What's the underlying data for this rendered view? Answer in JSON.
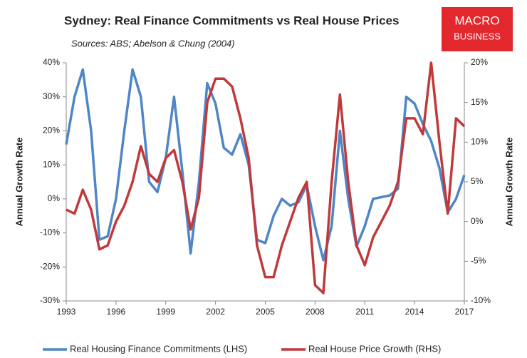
{
  "chart_data": {
    "type": "line",
    "title": "Sydney: Real Finance Commitments vs Real House Prices",
    "subtitle": "Sources: ABS; Abelson & Chung (2004)",
    "logo": [
      "MACRO",
      "BUSINESS"
    ],
    "ylabel": "Annual Growth Rate",
    "y2label": "Annual Growth Rate",
    "x": [
      1993,
      1993.5,
      1994,
      1994.5,
      1995,
      1995.5,
      1996,
      1996.5,
      1997,
      1997.5,
      1998,
      1998.5,
      1999,
      1999.5,
      2000,
      2000.5,
      2001,
      2001.5,
      2002,
      2002.5,
      2003,
      2003.5,
      2004,
      2004.5,
      2005,
      2005.5,
      2006,
      2006.5,
      2007,
      2007.5,
      2008,
      2008.5,
      2009,
      2009.5,
      2010,
      2010.5,
      2011,
      2011.5,
      2012,
      2012.5,
      2013,
      2013.5,
      2014,
      2014.5,
      2015,
      2015.5,
      2016,
      2016.5,
      2017
    ],
    "series": [
      {
        "name": "Real Housing Finance Commitments (LHS)",
        "color": "#4f86c6",
        "axis": "y",
        "values": [
          16,
          30,
          38,
          20,
          -12,
          -11,
          0,
          20,
          38,
          30,
          5,
          2,
          12,
          30,
          8,
          -16,
          5,
          34,
          28,
          15,
          13,
          19,
          10,
          -12,
          -13,
          -5,
          0,
          -2,
          -1,
          4,
          -8,
          -18,
          -8,
          20,
          0,
          -14,
          -8,
          0,
          0.5,
          1,
          3,
          30,
          28,
          22,
          17,
          9,
          -4,
          0,
          7
        ]
      },
      {
        "name": "Real House Price Growth (RHS)",
        "color": "#c0393b",
        "axis": "y2",
        "values": [
          1.5,
          1,
          4,
          1.5,
          -3.5,
          -3,
          0,
          2,
          5,
          9.5,
          6,
          5,
          8,
          9,
          5,
          -1,
          3,
          15,
          18,
          18,
          17,
          13,
          8,
          -3,
          -7,
          -7,
          -3,
          0,
          3,
          5,
          -8,
          -9,
          5,
          16,
          5,
          -3,
          -5.5,
          -2,
          0,
          2,
          5,
          13,
          13,
          11,
          20,
          10,
          1,
          13,
          12
        ]
      }
    ],
    "xlim": [
      1993,
      2017
    ],
    "xticks": [
      1993,
      1996,
      1999,
      2002,
      2005,
      2008,
      2011,
      2014,
      2017
    ],
    "ylim": [
      -30,
      40
    ],
    "yticks": [
      {
        "value": -30,
        "label": "-30%"
      },
      {
        "value": -20,
        "label": "-20%"
      },
      {
        "value": -10,
        "label": "-10%"
      },
      {
        "value": 0,
        "label": "0%"
      },
      {
        "value": 10,
        "label": "10%"
      },
      {
        "value": 20,
        "label": "20%"
      },
      {
        "value": 30,
        "label": "30%"
      },
      {
        "value": 40,
        "label": "40%"
      }
    ],
    "y2lim": [
      -10,
      20
    ],
    "y2ticks": [
      {
        "value": -10,
        "label": "-10%"
      },
      {
        "value": -5,
        "label": "-5%"
      },
      {
        "value": 0,
        "label": "0%"
      },
      {
        "value": 5,
        "label": "5%"
      },
      {
        "value": 10,
        "label": "10%"
      },
      {
        "value": 15,
        "label": "15%"
      },
      {
        "value": 20,
        "label": "20%"
      }
    ],
    "grid": false,
    "legend": "bottom"
  }
}
